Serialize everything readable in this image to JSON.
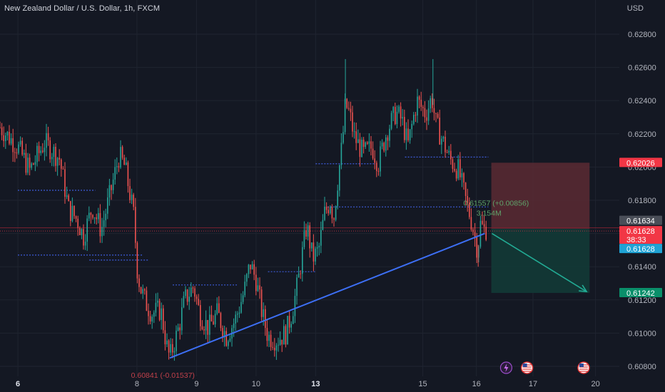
{
  "header": {
    "title": "New Zealand Dollar / U.S. Dollar, 1h, FXCM",
    "currency": "USD"
  },
  "colors": {
    "background": "#141823",
    "grid": "#1f2430",
    "bull": "#26a69a",
    "bear": "#ef5350",
    "trendline": "#3d6ff5",
    "stop_zone": "#5a2a33",
    "target_zone": "#123a36",
    "axis_text": "#b2b5be"
  },
  "chart_data": {
    "type": "candlestick",
    "title": "New Zealand Dollar / U.S. Dollar, 1h, FXCM",
    "ylabel": "USD",
    "ylim": [
      0.6074,
      0.6292
    ],
    "y_ticks": [
      0.608,
      0.61,
      0.612,
      0.614,
      0.616,
      0.618,
      0.62,
      0.622,
      0.624,
      0.626,
      0.628
    ],
    "y_tick_labels": [
      "0.60800",
      "0.61000",
      "0.61200",
      "0.61400",
      "0.61600",
      "0.61800",
      "0.62000",
      "0.62200",
      "0.62400",
      "0.62600",
      "0.62800"
    ],
    "x_ticks": [
      {
        "label": "6",
        "bold": true,
        "x": 6.0
      },
      {
        "label": "8",
        "bold": false,
        "x": 8.0
      },
      {
        "label": "9",
        "bold": false,
        "x": 9.0
      },
      {
        "label": "10",
        "bold": false,
        "x": 10.0
      },
      {
        "label": "13",
        "bold": true,
        "x": 11.0
      },
      {
        "label": "15",
        "bold": false,
        "x": 12.8
      },
      {
        "label": "16",
        "bold": false,
        "x": 13.7
      },
      {
        "label": "17",
        "bold": false,
        "x": 14.65
      },
      {
        "label": "20",
        "bold": false,
        "x": 15.7
      }
    ],
    "xlim": [
      5.7,
      16.1
    ],
    "price_path": [
      [
        5.7,
        0.6224
      ],
      [
        6.0,
        0.6212
      ],
      [
        6.2,
        0.6198
      ],
      [
        6.45,
        0.6215
      ],
      [
        6.7,
        0.6205
      ],
      [
        6.85,
        0.6175
      ],
      [
        7.0,
        0.6168
      ],
      [
        7.1,
        0.6158
      ],
      [
        7.25,
        0.6176
      ],
      [
        7.4,
        0.6162
      ],
      [
        7.55,
        0.6184
      ],
      [
        7.7,
        0.6207
      ],
      [
        7.8,
        0.62
      ],
      [
        7.95,
        0.617
      ],
      [
        8.0,
        0.614
      ],
      [
        8.05,
        0.6128
      ],
      [
        8.15,
        0.6118
      ],
      [
        8.25,
        0.6112
      ],
      [
        8.4,
        0.6114
      ],
      [
        8.5,
        0.6092
      ],
      [
        8.55,
        0.6085
      ],
      [
        8.7,
        0.6103
      ],
      [
        8.8,
        0.612
      ],
      [
        8.95,
        0.6128
      ],
      [
        9.05,
        0.6112
      ],
      [
        9.2,
        0.6103
      ],
      [
        9.35,
        0.6112
      ],
      [
        9.5,
        0.6098
      ],
      [
        9.65,
        0.6108
      ],
      [
        9.8,
        0.6125
      ],
      [
        9.9,
        0.6142
      ],
      [
        10.0,
        0.6132
      ],
      [
        10.1,
        0.6112
      ],
      [
        10.2,
        0.6098
      ],
      [
        10.35,
        0.6096
      ],
      [
        10.5,
        0.61
      ],
      [
        10.6,
        0.6112
      ],
      [
        10.7,
        0.613
      ],
      [
        10.85,
        0.6165
      ],
      [
        10.95,
        0.6145
      ],
      [
        11.05,
        0.615
      ],
      [
        11.15,
        0.6172
      ],
      [
        11.25,
        0.618
      ],
      [
        11.3,
        0.6168
      ],
      [
        11.38,
        0.6195
      ],
      [
        11.45,
        0.6215
      ],
      [
        11.5,
        0.6238
      ],
      [
        11.57,
        0.6232
      ],
      [
        11.65,
        0.6218
      ],
      [
        11.8,
        0.6208
      ],
      [
        11.95,
        0.6212
      ],
      [
        12.05,
        0.6202
      ],
      [
        12.2,
        0.6222
      ],
      [
        12.35,
        0.6233
      ],
      [
        12.45,
        0.6228
      ],
      [
        12.55,
        0.6213
      ],
      [
        12.7,
        0.624
      ],
      [
        12.85,
        0.6232
      ],
      [
        12.95,
        0.6242
      ],
      [
        13.02,
        0.6226
      ],
      [
        13.12,
        0.6217
      ],
      [
        13.25,
        0.6205
      ],
      [
        13.4,
        0.6198
      ],
      [
        13.52,
        0.618
      ],
      [
        13.62,
        0.6167
      ],
      [
        13.72,
        0.615
      ],
      [
        13.77,
        0.6166
      ],
      [
        13.82,
        0.6162
      ],
      [
        13.87,
        0.6163
      ]
    ],
    "price_extremes": [
      {
        "x": 11.5,
        "high": 0.6265,
        "note": "spike high"
      },
      {
        "x": 12.97,
        "high": 0.6265,
        "note": "spike high"
      },
      {
        "x": 13.73,
        "low": 0.614,
        "note": "spike low"
      }
    ],
    "drawings": {
      "trendline": {
        "from": [
          8.55,
          0.6085
        ],
        "to": [
          13.84,
          0.616
        ]
      },
      "horizontal_line": 0.61634,
      "short_position": {
        "x_start": 13.95,
        "x_end": 15.6,
        "entry": 0.61628,
        "stop": 0.62026,
        "target": 0.61242,
        "entry_label": "0.61628",
        "stop_label": "0.62026",
        "target_label": "0.61242",
        "arrow_from": [
          13.96,
          0.616
        ],
        "arrow_to": [
          15.55,
          0.6125
        ]
      },
      "dashed_levels": [
        {
          "y": 0.6186,
          "x1": 6.0,
          "x2": 7.3
        },
        {
          "y": 0.6147,
          "x1": 6.0,
          "x2": 8.1
        },
        {
          "y": 0.6144,
          "x1": 7.2,
          "x2": 8.2
        },
        {
          "y": 0.6129,
          "x1": 8.6,
          "x2": 9.7
        },
        {
          "y": 0.6137,
          "x1": 10.2,
          "x2": 11.0
        },
        {
          "y": 0.6202,
          "x1": 11.0,
          "x2": 12.0
        },
        {
          "y": 0.6176,
          "x1": 11.2,
          "x2": 13.9
        },
        {
          "y": 0.6206,
          "x1": 12.5,
          "x2": 13.9
        }
      ]
    },
    "annotations": {
      "measure_value": "0.61557 (+0.00856)",
      "measure_volume": "3.154M",
      "bottom_partial_text": "0.60841 (-0.01537)",
      "countdown": "38:33"
    },
    "price_labels": [
      {
        "text": "0.62026",
        "value": 0.62026,
        "bg": "#f23645",
        "color": "#ffffff"
      },
      {
        "text": "0.61634",
        "value": 0.61634,
        "bg": "#4a4e58",
        "color": "#ffffff",
        "offset": -10
      },
      {
        "text": "0.61628",
        "value": 0.61628,
        "bg": "#f23645",
        "color": "#ffffff",
        "offset": 3
      },
      {
        "text": "38:33",
        "value": 0.61628,
        "bg": "#f23645",
        "color": "#ffffff",
        "offset": 15
      },
      {
        "text": "0.61628",
        "value": 0.61628,
        "bg": "#1fa3d5",
        "color": "#ffffff",
        "offset": 28
      },
      {
        "text": "0.61242",
        "value": 0.61242,
        "bg": "#0a8f6a",
        "color": "#ffffff"
      }
    ],
    "event_markers": [
      {
        "x": 14.2,
        "type": "lightning-icon"
      },
      {
        "x": 14.55,
        "type": "us-flag-icon"
      },
      {
        "x": 15.5,
        "type": "us-flag-icon"
      }
    ]
  }
}
